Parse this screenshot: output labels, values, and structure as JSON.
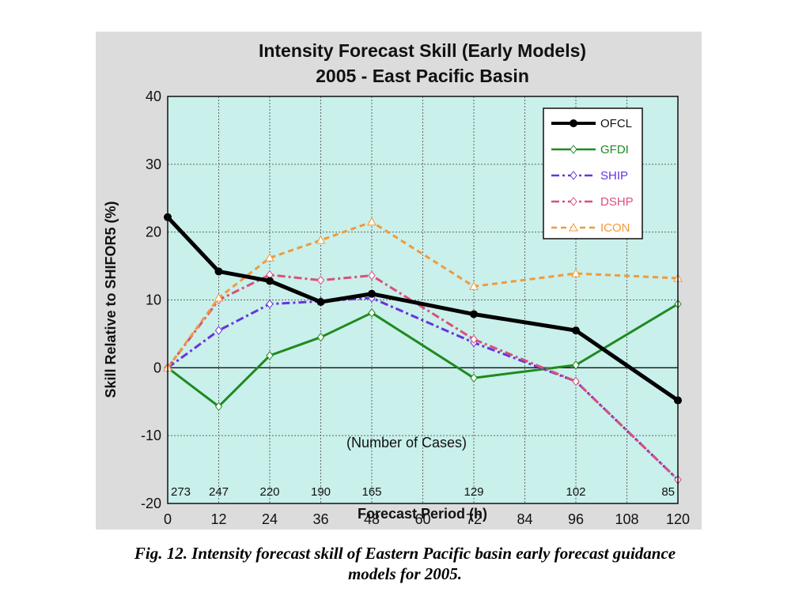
{
  "caption": {
    "line1": "Fig. 12. Intensity forecast skill of Eastern Pacific basin early forecast guidance",
    "line2": "models for 2005."
  },
  "colors": {
    "panel_bg": "#dcdcdc",
    "plot_bg": "#c9f0eb",
    "grid": "#666666"
  },
  "chart_data": {
    "type": "line",
    "title": [
      "Intensity Forecast Skill (Early Models)",
      "2005 - East Pacific Basin"
    ],
    "xlabel": "Forecast Period (h)",
    "ylabel": "Skill Relative to SHIFOR5 (%)",
    "xlim": [
      0,
      120
    ],
    "ylim": [
      -20,
      40
    ],
    "x_ticks": [
      0,
      12,
      24,
      36,
      48,
      60,
      72,
      84,
      96,
      108,
      120
    ],
    "y_ticks": [
      -20,
      -10,
      0,
      10,
      20,
      30,
      40
    ],
    "grid": true,
    "legend_position": "top-right",
    "cases_label": "(Number of Cases)",
    "cases": [
      {
        "x": 0,
        "n": "273"
      },
      {
        "x": 12,
        "n": "247"
      },
      {
        "x": 24,
        "n": "220"
      },
      {
        "x": 36,
        "n": "190"
      },
      {
        "x": 48,
        "n": "165"
      },
      {
        "x": 72,
        "n": "129"
      },
      {
        "x": 96,
        "n": "102"
      },
      {
        "x": 120,
        "n": "85"
      }
    ],
    "x": [
      0,
      12,
      24,
      36,
      48,
      72,
      96,
      120
    ],
    "series": [
      {
        "name": "OFCL",
        "color": "#000000",
        "dash": "solid",
        "marker": "dot",
        "values": [
          22.2,
          14.2,
          12.8,
          9.7,
          10.9,
          7.9,
          5.5,
          -4.8
        ]
      },
      {
        "name": "GFDI",
        "color": "#1f8a1f",
        "dash": "solid",
        "marker": "diamond",
        "values": [
          0.0,
          -5.7,
          1.8,
          4.5,
          8.1,
          -1.5,
          0.4,
          9.4
        ]
      },
      {
        "name": "SHIP",
        "color": "#6633dd",
        "dash": "dashdot",
        "marker": "diamond",
        "values": [
          0.0,
          5.5,
          9.4,
          9.8,
          10.3,
          3.7,
          -2.0,
          -16.5
        ]
      },
      {
        "name": "DSHP",
        "color": "#d9507a",
        "dash": "dashdot",
        "marker": "diamond",
        "values": [
          0.0,
          10.0,
          13.7,
          12.9,
          13.6,
          4.2,
          -2.0,
          -16.5
        ]
      },
      {
        "name": "ICON",
        "color": "#f09a3a",
        "dash": "dashed",
        "marker": "triangle",
        "values": [
          0.0,
          10.3,
          16.2,
          18.8,
          21.5,
          12.0,
          13.9,
          13.2
        ]
      }
    ]
  }
}
